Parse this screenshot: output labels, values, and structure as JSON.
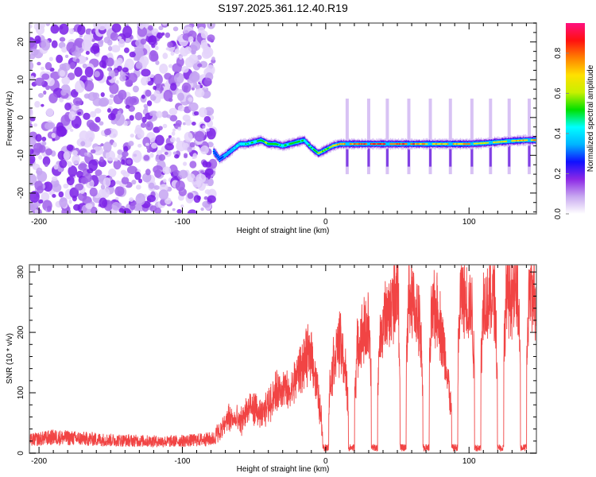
{
  "title": "S197.2025.361.12.40.R19",
  "chart_data": [
    {
      "type": "heatmap",
      "name": "spectrogram",
      "xlabel": "Height of straight line (km)",
      "ylabel": "Frequency (Hz)",
      "xlim": [
        -206.7,
        147
      ],
      "ylim": [
        -25.5,
        25
      ],
      "xticks": [
        -200,
        -100,
        0,
        100
      ],
      "xtick_labels": [
        "-200",
        "-100",
        "0",
        "100"
      ],
      "xminor_step": 10,
      "yticks": [
        -20,
        -10,
        0,
        10,
        20
      ],
      "ytick_labels": [
        "-20",
        "-10",
        "0",
        "10",
        "20"
      ],
      "yminor_step": 2.5,
      "noise_region_x": [
        -206.7,
        -78
      ],
      "signal_track": {
        "description": "narrowband signal ridge, amplitude increasing toward the right",
        "x": [
          -78,
          -74,
          -70,
          -65,
          -60,
          -55,
          -50,
          -45,
          -40,
          -35,
          -30,
          -25,
          -20,
          -15,
          -10,
          -5,
          0,
          5,
          10,
          15,
          20,
          30,
          40,
          50,
          60,
          70,
          80,
          90,
          100,
          110,
          120,
          130,
          140,
          147
        ],
        "freq": [
          -9,
          -11,
          -10,
          -8.5,
          -7,
          -7,
          -6.5,
          -6,
          -7,
          -7,
          -7.5,
          -7,
          -6.5,
          -6,
          -8,
          -9.5,
          -8.5,
          -7.5,
          -7,
          -7,
          -7,
          -7,
          -7,
          -7,
          -7,
          -7,
          -7,
          -7,
          -7,
          -6.8,
          -6.5,
          -6.2,
          -6,
          -6
        ],
        "amplitude": [
          0.3,
          0.3,
          0.35,
          0.4,
          0.45,
          0.5,
          0.5,
          0.55,
          0.6,
          0.55,
          0.5,
          0.55,
          0.55,
          0.5,
          0.5,
          0.6,
          0.6,
          0.65,
          0.8,
          0.8,
          0.85,
          0.9,
          0.9,
          0.88,
          0.85,
          0.8,
          0.75,
          0.8,
          0.75,
          0.7,
          0.7,
          0.75,
          0.8,
          0.85
        ]
      },
      "gaps_x": [
        15,
        30,
        43,
        58,
        73,
        87,
        102,
        115,
        128,
        142
      ],
      "colorbar": {
        "label": "Normalized spectral amplitude",
        "range": [
          0,
          0.95
        ],
        "ticks": [
          0.0,
          0.2,
          0.4,
          0.6,
          0.8
        ],
        "tick_labels": [
          "0.0",
          "0.2",
          "0.4",
          "0.6",
          "0.8"
        ],
        "colors": [
          "#ffffff",
          "#c8a8f0",
          "#8c28e6",
          "#1010ff",
          "#00b4ff",
          "#00ffff",
          "#00e000",
          "#c8f000",
          "#ffe000",
          "#ff8000",
          "#ff1010",
          "#ff1080"
        ]
      }
    },
    {
      "type": "line",
      "name": "snr",
      "xlabel": "Height of straight line (km)",
      "ylabel": "SNR (10 * v/v)",
      "xlim": [
        -206.7,
        147
      ],
      "ylim": [
        0,
        312
      ],
      "xticks": [
        -200,
        -100,
        0,
        100
      ],
      "xtick_labels": [
        "-200",
        "-100",
        "0",
        "100"
      ],
      "xminor_step": 10,
      "yticks": [
        0,
        100,
        200,
        300
      ],
      "ytick_labels": [
        "0",
        "100",
        "200",
        "300"
      ],
      "yminor_step": 20,
      "color": "#f03030",
      "series": [
        {
          "name": "SNR",
          "x": [
            -206,
            -190,
            -170,
            -150,
            -130,
            -110,
            -90,
            -78,
            -72,
            -68,
            -64,
            -60,
            -55,
            -50,
            -45,
            -40,
            -35,
            -30,
            -25,
            -20,
            -15,
            -10,
            -5,
            -2,
            0,
            3,
            6,
            10,
            14,
            18,
            22,
            26,
            30,
            34,
            38,
            42,
            46,
            50,
            54,
            58,
            62,
            66,
            70,
            74,
            78,
            82,
            86,
            90,
            94,
            98,
            102,
            106,
            110,
            114,
            118,
            122,
            126,
            130,
            134,
            138,
            142,
            147
          ],
          "y": [
            18,
            22,
            20,
            18,
            17,
            16,
            18,
            20,
            40,
            60,
            55,
            50,
            70,
            75,
            60,
            80,
            100,
            110,
            95,
            130,
            150,
            170,
            90,
            40,
            5,
            110,
            160,
            185,
            130,
            5,
            170,
            200,
            210,
            5,
            190,
            230,
            240,
            290,
            5,
            260,
            240,
            210,
            5,
            230,
            240,
            180,
            110,
            5,
            260,
            250,
            240,
            5,
            255,
            250,
            260,
            5,
            270,
            260,
            265,
            5,
            265,
            260
          ],
          "gaps_to_zero_x": [
            0,
            18,
            34,
            54,
            70,
            90,
            106,
            122,
            138
          ]
        }
      ]
    }
  ]
}
